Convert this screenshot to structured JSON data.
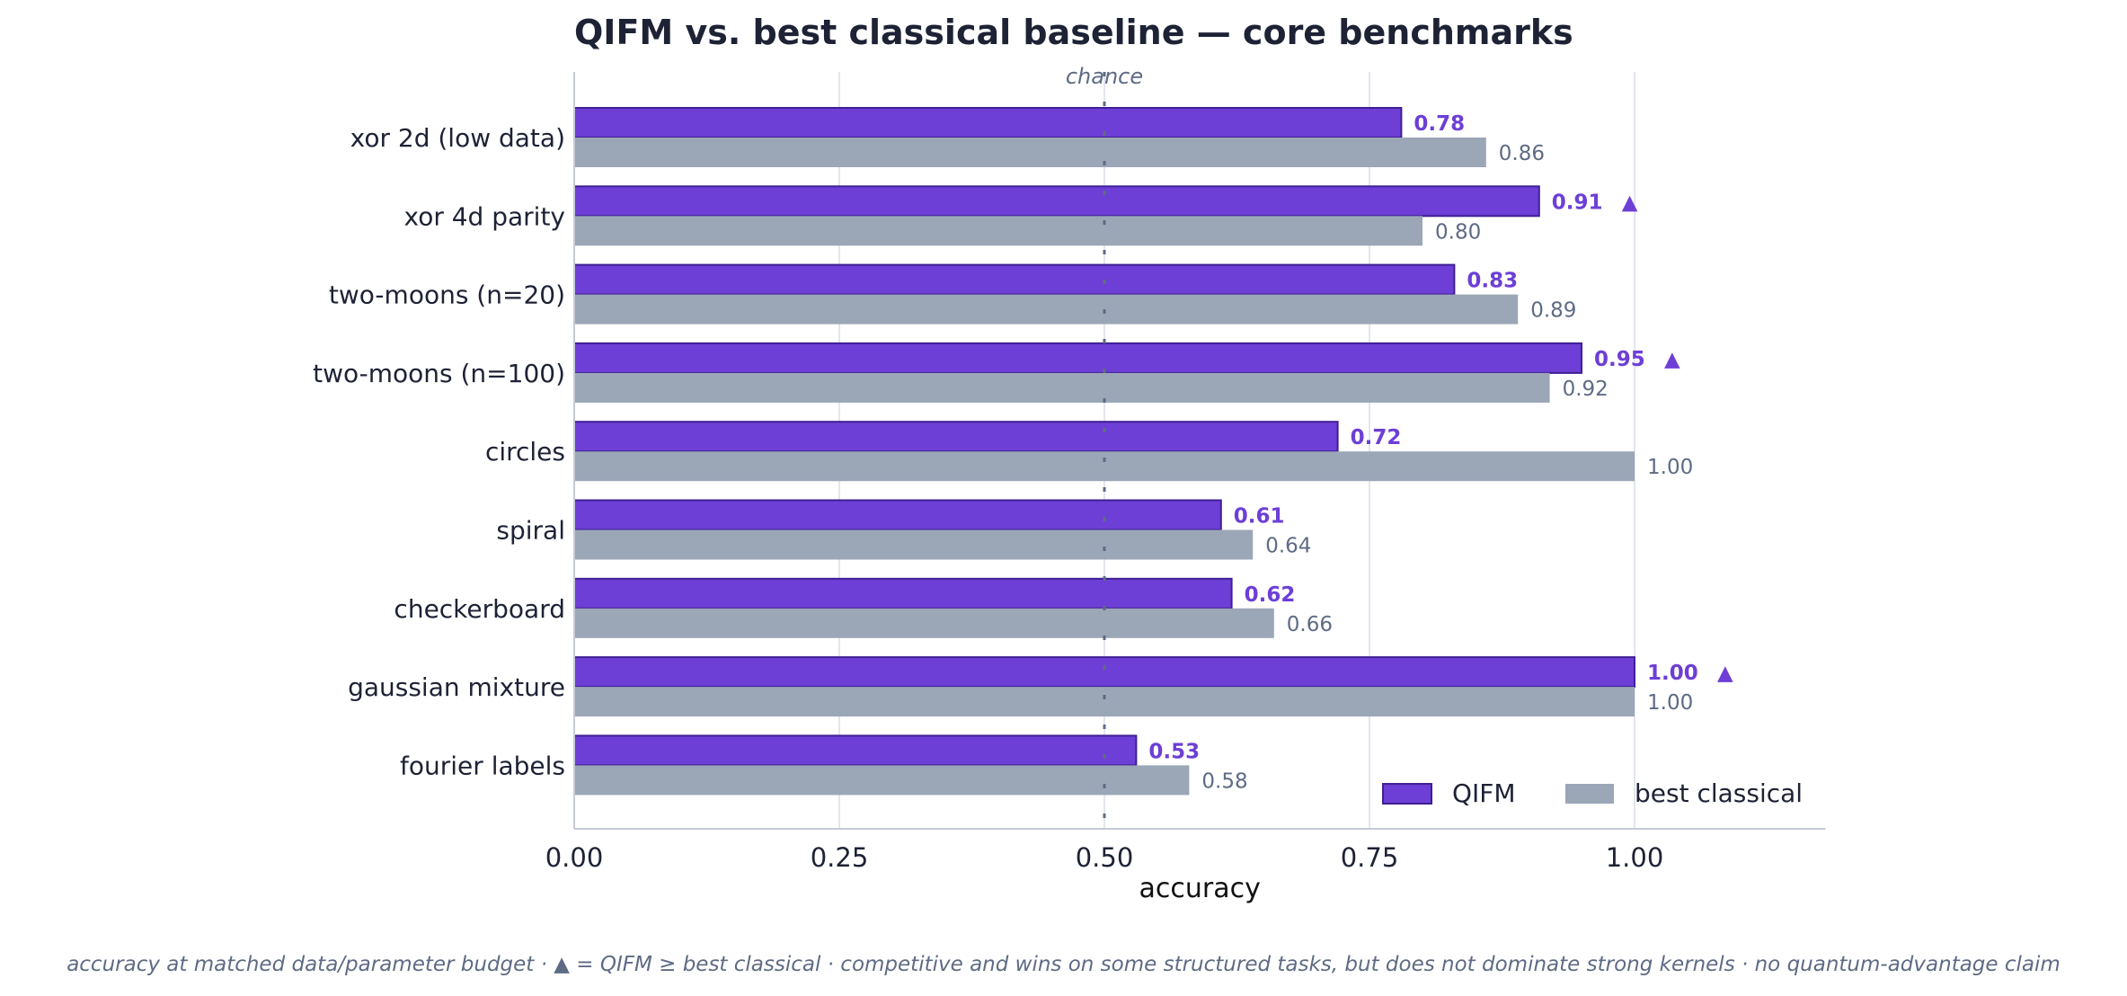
{
  "chart_data": {
    "type": "bar",
    "orientation": "horizontal",
    "title": "QIFM vs. best classical baseline — core benchmarks",
    "xlabel": "accuracy",
    "ylabel": "",
    "xlim": [
      0,
      1.18
    ],
    "x_ticks": [
      "0.00",
      "0.25",
      "0.50",
      "0.75",
      "1.00"
    ],
    "grid": "vertical",
    "legend_position": "lower-right",
    "categories": [
      "xor 2d (low data)",
      "xor 4d parity",
      "two-moons (n=20)",
      "two-moons (n=100)",
      "circles",
      "spiral",
      "checkerboard",
      "gaussian mixture",
      "fourier labels"
    ],
    "series": [
      {
        "name": "QIFM",
        "color": "#6d3fd6",
        "values": [
          0.78,
          0.91,
          0.83,
          0.95,
          0.72,
          0.61,
          0.62,
          1.0,
          0.53
        ]
      },
      {
        "name": "best classical",
        "color": "#9ba6b7",
        "values": [
          0.86,
          0.8,
          0.89,
          0.92,
          1.0,
          0.64,
          0.66,
          1.0,
          0.58
        ]
      }
    ],
    "value_labels": {
      "QIFM": [
        "0.78",
        "0.91",
        "0.83",
        "0.95",
        "0.72",
        "0.61",
        "0.62",
        "1.00",
        "0.53"
      ],
      "best classical": [
        "0.86",
        "0.80",
        "0.89",
        "0.92",
        "1.00",
        "0.64",
        "0.66",
        "1.00",
        "0.58"
      ]
    },
    "win_marker": "▲",
    "reference_line": {
      "x": 0.5,
      "label": "chance"
    },
    "footnote": "accuracy at matched data/parameter budget · ▲ = QIFM ≥ best classical · competitive and wins on some structured tasks, but does not dominate strong kernels · no quantum-advantage claim"
  }
}
